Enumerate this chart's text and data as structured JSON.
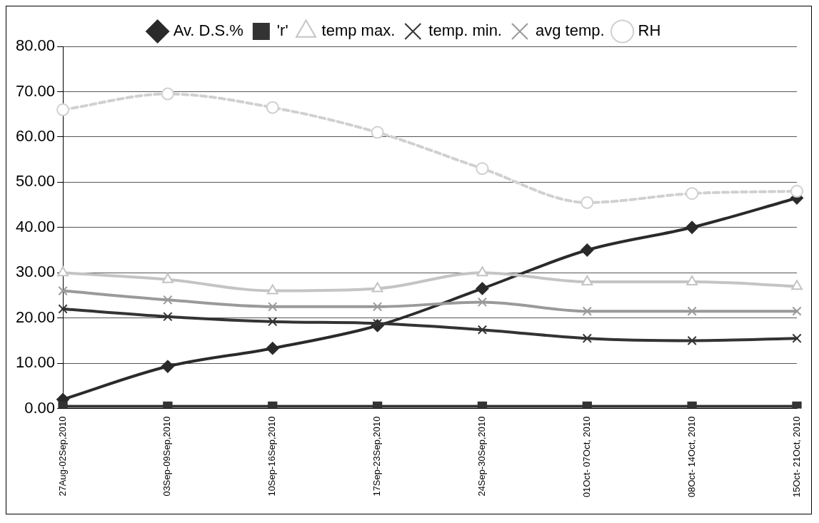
{
  "chart_data": {
    "type": "line",
    "categories": [
      "27Aug-02Sep,2010",
      "03Sep-09Sep,2010",
      "10Sep-16Sep,2010",
      "17Sep-23Sep,2010",
      "24Sep-30Sep,2010",
      "01Oct- 07Oct, 2010",
      "08Oct- 14Oct, 2010",
      "15Oct- 21Oct, 2010"
    ],
    "series": [
      {
        "name": "Av. D.S.%",
        "color": "#2a2a2a",
        "marker": "diamond",
        "values": [
          2.0,
          9.3,
          13.3,
          18.3,
          26.5,
          35.0,
          40.0,
          46.5
        ]
      },
      {
        "name": "'r'",
        "color": "#333333",
        "marker": "square",
        "values": [
          0.5,
          0.5,
          0.5,
          0.5,
          0.5,
          0.5,
          0.5,
          0.5
        ]
      },
      {
        "name": "temp max.",
        "color": "#c4c4c4",
        "marker": "triangle",
        "values": [
          30.0,
          28.5,
          26.0,
          26.5,
          30.0,
          28.0,
          28.0,
          27.0
        ]
      },
      {
        "name": "temp. min.",
        "color": "#333333",
        "marker": "cross",
        "values": [
          22.0,
          20.3,
          19.2,
          18.8,
          17.4,
          15.5,
          15.0,
          15.5
        ]
      },
      {
        "name": "avg temp.",
        "color": "#9a9a9a",
        "marker": "cross",
        "values": [
          26.0,
          24.0,
          22.5,
          22.5,
          23.5,
          21.5,
          21.5,
          21.5
        ]
      },
      {
        "name": "RH",
        "color": "#d0d0d0",
        "marker": "circle",
        "line_style": "dashed",
        "values": [
          66.0,
          69.5,
          66.5,
          61.0,
          53.0,
          45.5,
          47.5,
          48.0
        ]
      }
    ],
    "ylim": [
      0,
      80
    ],
    "yticks": [
      {
        "value": 0,
        "label": "0.00"
      },
      {
        "value": 10,
        "label": "10.00"
      },
      {
        "value": 20,
        "label": "20.00"
      },
      {
        "value": 30,
        "label": "30.00"
      },
      {
        "value": 40,
        "label": "40.00"
      },
      {
        "value": 50,
        "label": "50.00"
      },
      {
        "value": 60,
        "label": "60.00"
      },
      {
        "value": 70,
        "label": "70.00"
      },
      {
        "value": 80,
        "label": "80.00"
      }
    ],
    "grid": "y",
    "legend": "top"
  }
}
